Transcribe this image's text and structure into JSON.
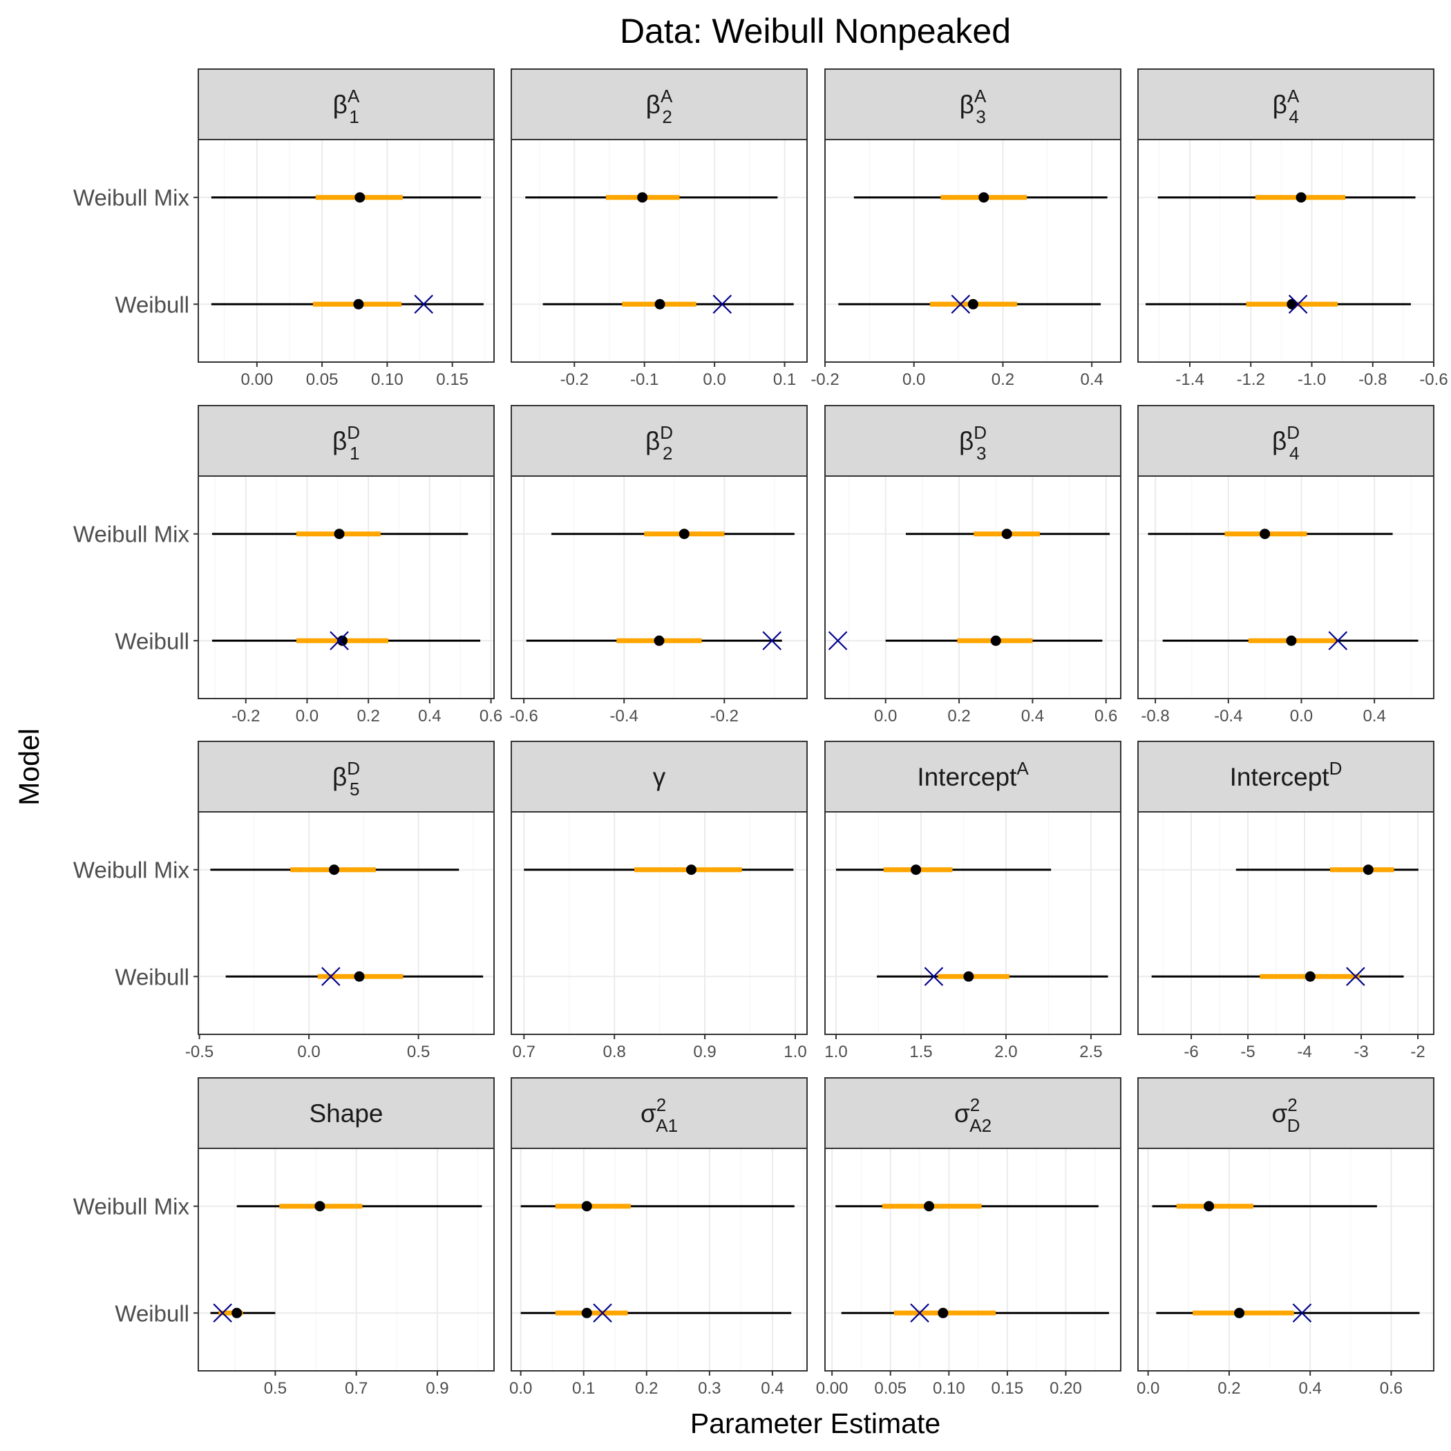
{
  "chart_data": {
    "type": "forest",
    "title": "Data: Weibull Nonpeaked",
    "xlabel": "Parameter Estimate",
    "ylabel": "Model",
    "models": [
      "Weibull Mix",
      "Weibull"
    ],
    "grid": true,
    "colors": {
      "outer": "#000000",
      "inner": "#FFA500",
      "point": "#000000",
      "truth": "#00008B",
      "strip": "#D9D9D9",
      "gridMajor": "#EBEBEB",
      "gridMinor": "#F5F5F5"
    },
    "panels": [
      {
        "label": {
          "base": "β",
          "sup": "A",
          "sub": "1"
        },
        "xlim": [
          -0.045,
          0.182
        ],
        "ticks": [
          0.0,
          0.05,
          0.1,
          0.15
        ],
        "tick_labels": [
          "0.00",
          "0.05",
          "0.10",
          "0.15"
        ],
        "rows": [
          {
            "model": "Weibull Mix",
            "low": -0.035,
            "q1": 0.045,
            "est": 0.079,
            "q3": 0.112,
            "high": 0.172
          },
          {
            "model": "Weibull",
            "low": -0.035,
            "q1": 0.043,
            "est": 0.078,
            "q3": 0.111,
            "high": 0.174,
            "truth": 0.128
          }
        ]
      },
      {
        "label": {
          "base": "β",
          "sup": "A",
          "sub": "2"
        },
        "xlim": [
          -0.29,
          0.132
        ],
        "ticks": [
          -0.2,
          -0.1,
          0.0,
          0.1
        ],
        "tick_labels": [
          "-0.2",
          "-0.1",
          "0.0",
          "0.1"
        ],
        "rows": [
          {
            "model": "Weibull Mix",
            "low": -0.27,
            "q1": -0.155,
            "est": -0.103,
            "q3": -0.05,
            "high": 0.09
          },
          {
            "model": "Weibull",
            "low": -0.245,
            "q1": -0.132,
            "est": -0.078,
            "q3": -0.026,
            "high": 0.113,
            "truth": 0.011
          }
        ]
      },
      {
        "label": {
          "base": "β",
          "sup": "A",
          "sub": "3"
        },
        "xlim": [
          -0.2,
          0.465
        ],
        "ticks": [
          -0.2,
          0.0,
          0.2,
          0.4
        ],
        "tick_labels": [
          "-0.2",
          "0.0",
          "0.2",
          "0.4"
        ],
        "rows": [
          {
            "model": "Weibull Mix",
            "low": -0.135,
            "q1": 0.06,
            "est": 0.157,
            "q3": 0.254,
            "high": 0.435
          },
          {
            "model": "Weibull",
            "low": -0.17,
            "q1": 0.036,
            "est": 0.133,
            "q3": 0.232,
            "high": 0.42,
            "truth": 0.105
          }
        ]
      },
      {
        "label": {
          "base": "β",
          "sup": "A",
          "sub": "4"
        },
        "xlim": [
          -1.57,
          -0.6
        ],
        "ticks": [
          -1.4,
          -1.2,
          -1.0,
          -0.8,
          -0.6
        ],
        "tick_labels": [
          "-1.4",
          "-1.2",
          "-1.0",
          "-0.8",
          "-0.6"
        ],
        "rows": [
          {
            "model": "Weibull Mix",
            "low": -1.505,
            "q1": -1.185,
            "est": -1.035,
            "q3": -0.89,
            "high": -0.66
          },
          {
            "model": "Weibull",
            "low": -1.545,
            "q1": -1.215,
            "est": -1.065,
            "q3": -0.915,
            "high": -0.675,
            "truth": -1.045
          }
        ]
      },
      {
        "label": {
          "base": "β",
          "sup": "D",
          "sub": "1"
        },
        "xlim": [
          -0.355,
          0.61
        ],
        "ticks": [
          -0.2,
          0.0,
          0.2,
          0.4,
          0.6
        ],
        "tick_labels": [
          "-0.2",
          "0.0",
          "0.2",
          "0.4",
          "0.6"
        ],
        "rows": [
          {
            "model": "Weibull Mix",
            "low": -0.31,
            "q1": -0.035,
            "est": 0.105,
            "q3": 0.24,
            "high": 0.525
          },
          {
            "model": "Weibull",
            "low": -0.31,
            "q1": -0.035,
            "est": 0.115,
            "q3": 0.265,
            "high": 0.565,
            "truth": 0.105
          }
        ]
      },
      {
        "label": {
          "base": "β",
          "sup": "D",
          "sub": "2"
        },
        "xlim": [
          -0.625,
          -0.035
        ],
        "ticks": [
          -0.6,
          -0.4,
          -0.2
        ],
        "tick_labels": [
          "-0.6",
          "-0.4",
          "-0.2"
        ],
        "rows": [
          {
            "model": "Weibull Mix",
            "low": -0.545,
            "q1": -0.36,
            "est": -0.28,
            "q3": -0.2,
            "high": -0.06
          },
          {
            "model": "Weibull",
            "low": -0.595,
            "q1": -0.415,
            "est": -0.33,
            "q3": -0.245,
            "high": -0.085,
            "truth": -0.105
          }
        ]
      },
      {
        "label": {
          "base": "β",
          "sup": "D",
          "sub": "3"
        },
        "xlim": [
          -0.165,
          0.64
        ],
        "ticks": [
          0.0,
          0.2,
          0.4,
          0.6
        ],
        "tick_labels": [
          "0.0",
          "0.2",
          "0.4",
          "0.6"
        ],
        "rows": [
          {
            "model": "Weibull Mix",
            "low": 0.055,
            "q1": 0.24,
            "est": 0.33,
            "q3": 0.42,
            "high": 0.61
          },
          {
            "model": "Weibull",
            "low": 0.0,
            "q1": 0.195,
            "est": 0.3,
            "q3": 0.4,
            "high": 0.59,
            "truth": -0.13
          }
        ]
      },
      {
        "label": {
          "base": "β",
          "sup": "D",
          "sub": "4"
        },
        "xlim": [
          -0.895,
          0.725
        ],
        "ticks": [
          -0.8,
          -0.4,
          0.0,
          0.4
        ],
        "tick_labels": [
          "-0.8",
          "-0.4",
          "0.0",
          "0.4"
        ],
        "rows": [
          {
            "model": "Weibull Mix",
            "low": -0.84,
            "q1": -0.42,
            "est": -0.2,
            "q3": 0.03,
            "high": 0.5
          },
          {
            "model": "Weibull",
            "low": -0.76,
            "q1": -0.29,
            "est": -0.055,
            "q3": 0.19,
            "high": 0.64,
            "truth": 0.2
          }
        ]
      },
      {
        "label": {
          "base": "β",
          "sup": "D",
          "sub": "5"
        },
        "xlim": [
          -0.505,
          0.845
        ],
        "ticks": [
          -0.5,
          0.0,
          0.5
        ],
        "tick_labels": [
          "-0.5",
          "0.0",
          "0.5"
        ],
        "rows": [
          {
            "model": "Weibull Mix",
            "low": -0.45,
            "q1": -0.085,
            "est": 0.115,
            "q3": 0.305,
            "high": 0.685
          },
          {
            "model": "Weibull",
            "low": -0.38,
            "q1": 0.04,
            "est": 0.23,
            "q3": 0.43,
            "high": 0.795,
            "truth": 0.1
          }
        ]
      },
      {
        "label": {
          "base": "γ",
          "sup": "",
          "sub": ""
        },
        "xlim": [
          0.686,
          1.013
        ],
        "ticks": [
          0.7,
          0.8,
          0.9,
          1.0
        ],
        "tick_labels": [
          "0.7",
          "0.8",
          "0.9",
          "1.0"
        ],
        "rows": [
          {
            "model": "Weibull Mix",
            "low": 0.7,
            "q1": 0.822,
            "est": 0.885,
            "q3": 0.941,
            "high": 0.998
          }
        ]
      },
      {
        "label": {
          "base": "Intercept",
          "sup": "A",
          "sub": ""
        },
        "xlim": [
          0.935,
          2.675
        ],
        "ticks": [
          1.0,
          1.5,
          2.0,
          2.5
        ],
        "tick_labels": [
          "1.0",
          "1.5",
          "2.0",
          "2.5"
        ],
        "rows": [
          {
            "model": "Weibull Mix",
            "low": 1.0,
            "q1": 1.28,
            "est": 1.47,
            "q3": 1.685,
            "high": 2.265
          },
          {
            "model": "Weibull",
            "low": 1.24,
            "q1": 1.6,
            "est": 1.78,
            "q3": 2.02,
            "high": 2.6,
            "truth": 1.575
          }
        ]
      },
      {
        "label": {
          "base": "Intercept",
          "sup": "D",
          "sub": ""
        },
        "xlim": [
          -6.94,
          -1.72
        ],
        "ticks": [
          -6,
          -5,
          -4,
          -3,
          -2
        ],
        "tick_labels": [
          "-6",
          "-5",
          "-4",
          "-3",
          "-2"
        ],
        "rows": [
          {
            "model": "Weibull Mix",
            "low": -5.21,
            "q1": -3.55,
            "est": -2.875,
            "q3": -2.42,
            "high": -1.99
          },
          {
            "model": "Weibull",
            "low": -6.7,
            "q1": -4.79,
            "est": -3.9,
            "q3": -3.03,
            "high": -2.25,
            "truth": -3.1
          }
        ]
      },
      {
        "label": {
          "base": "Shape",
          "sup": "",
          "sub": ""
        },
        "xlim": [
          0.31,
          1.04
        ],
        "ticks": [
          0.5,
          0.7,
          0.9
        ],
        "tick_labels": [
          "0.5",
          "0.7",
          "0.9"
        ],
        "rows": [
          {
            "model": "Weibull Mix",
            "low": 0.405,
            "q1": 0.51,
            "est": 0.61,
            "q3": 0.715,
            "high": 1.01
          },
          {
            "model": "Weibull",
            "low": 0.34,
            "q1": 0.36,
            "est": 0.405,
            "q3": 0.42,
            "high": 0.5,
            "truth": 0.37
          }
        ]
      },
      {
        "label": {
          "base": "σ",
          "sup": "2",
          "sub": "A1"
        },
        "xlim": [
          -0.015,
          0.455
        ],
        "ticks": [
          0.0,
          0.1,
          0.2,
          0.3,
          0.4
        ],
        "tick_labels": [
          "0.0",
          "0.1",
          "0.2",
          "0.3",
          "0.4"
        ],
        "rows": [
          {
            "model": "Weibull Mix",
            "low": 0.0,
            "q1": 0.055,
            "est": 0.105,
            "q3": 0.175,
            "high": 0.435
          },
          {
            "model": "Weibull",
            "low": 0.0,
            "q1": 0.055,
            "est": 0.105,
            "q3": 0.17,
            "high": 0.43,
            "truth": 0.13
          }
        ]
      },
      {
        "label": {
          "base": "σ",
          "sup": "2",
          "sub": "A2"
        },
        "xlim": [
          -0.006,
          0.247
        ],
        "ticks": [
          0.0,
          0.05,
          0.1,
          0.15,
          0.2
        ],
        "tick_labels": [
          "0.00",
          "0.05",
          "0.10",
          "0.15",
          "0.20"
        ],
        "rows": [
          {
            "model": "Weibull Mix",
            "low": 0.003,
            "q1": 0.043,
            "est": 0.083,
            "q3": 0.128,
            "high": 0.228
          },
          {
            "model": "Weibull",
            "low": 0.008,
            "q1": 0.053,
            "est": 0.095,
            "q3": 0.14,
            "high": 0.237,
            "truth": 0.075
          }
        ]
      },
      {
        "label": {
          "base": "σ",
          "sup": "2",
          "sub": "D"
        },
        "xlim": [
          -0.025,
          0.705
        ],
        "ticks": [
          0.0,
          0.2,
          0.4,
          0.6
        ],
        "tick_labels": [
          "0.0",
          "0.2",
          "0.4",
          "0.6"
        ],
        "rows": [
          {
            "model": "Weibull Mix",
            "low": 0.01,
            "q1": 0.07,
            "est": 0.15,
            "q3": 0.26,
            "high": 0.565
          },
          {
            "model": "Weibull",
            "low": 0.02,
            "q1": 0.11,
            "est": 0.225,
            "q3": 0.36,
            "high": 0.67,
            "truth": 0.38
          }
        ]
      }
    ]
  }
}
